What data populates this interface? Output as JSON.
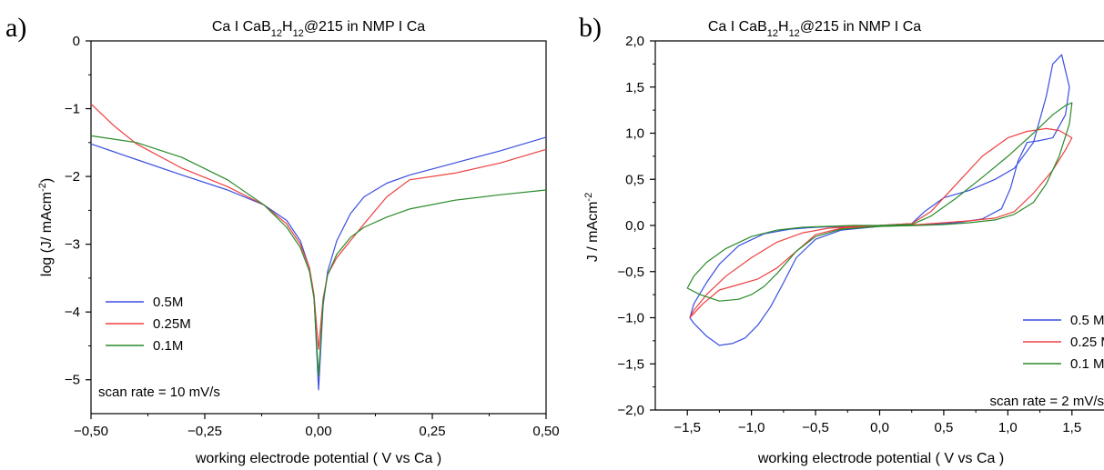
{
  "chart_data": [
    {
      "panel": "a)",
      "type": "line",
      "title_main": "Ca I CaB",
      "title_sub1": "12",
      "title_mid": "H",
      "title_sub2": "12",
      "title_end": "@215 in NMP I Ca",
      "xlabel": "working electrode potential  ( V vs Ca )",
      "ylabel_pre": "log (J/ mAcm",
      "ylabel_sup": "-2",
      "ylabel_post": ")",
      "xlim": [
        -0.5,
        0.5
      ],
      "ylim": [
        -5.5,
        0
      ],
      "xticks": [
        -0.5,
        -0.25,
        0,
        0.25,
        0.5
      ],
      "xtick_labels": [
        "−0,50",
        "−0,25",
        "0,00",
        "0,25",
        "0,50"
      ],
      "yticks": [
        0,
        -1,
        -2,
        -3,
        -4,
        -5
      ],
      "ytick_labels": [
        "0",
        "−1",
        "−2",
        "−3",
        "−4",
        "−5"
      ],
      "annotation": "scan rate = 10 mV/s",
      "legend_position": "bottom-left",
      "series": [
        {
          "name": "0.5M",
          "color": "#3a4fe0",
          "x": [
            -0.5,
            -0.4,
            -0.3,
            -0.2,
            -0.12,
            -0.07,
            -0.04,
            -0.02,
            -0.01,
            0.0,
            0.01,
            0.02,
            0.04,
            0.07,
            0.1,
            0.15,
            0.2,
            0.3,
            0.4,
            0.5
          ],
          "y": [
            -1.52,
            -1.75,
            -1.98,
            -2.2,
            -2.42,
            -2.65,
            -2.95,
            -3.35,
            -3.75,
            -5.15,
            -3.9,
            -3.4,
            -2.95,
            -2.55,
            -2.3,
            -2.1,
            -1.98,
            -1.8,
            -1.62,
            -1.42
          ]
        },
        {
          "name": "0.25M",
          "color": "#ee4040",
          "x": [
            -0.5,
            -0.45,
            -0.4,
            -0.3,
            -0.2,
            -0.12,
            -0.07,
            -0.04,
            -0.02,
            -0.01,
            0.0,
            0.01,
            0.02,
            0.04,
            0.07,
            0.1,
            0.15,
            0.2,
            0.3,
            0.4,
            0.5
          ],
          "y": [
            -0.93,
            -1.25,
            -1.52,
            -1.88,
            -2.15,
            -2.42,
            -2.7,
            -3.0,
            -3.35,
            -3.75,
            -4.55,
            -3.8,
            -3.45,
            -3.2,
            -2.95,
            -2.7,
            -2.3,
            -2.05,
            -1.95,
            -1.8,
            -1.6
          ]
        },
        {
          "name": "0.1M",
          "color": "#2a8a2a",
          "x": [
            -0.5,
            -0.4,
            -0.3,
            -0.2,
            -0.12,
            -0.07,
            -0.04,
            -0.02,
            -0.01,
            0.0,
            0.01,
            0.02,
            0.04,
            0.07,
            0.1,
            0.15,
            0.2,
            0.3,
            0.4,
            0.5
          ],
          "y": [
            -1.4,
            -1.5,
            -1.72,
            -2.05,
            -2.42,
            -2.75,
            -3.05,
            -3.4,
            -3.8,
            -4.95,
            -3.85,
            -3.45,
            -3.15,
            -2.9,
            -2.75,
            -2.6,
            -2.48,
            -2.35,
            -2.27,
            -2.2
          ]
        }
      ]
    },
    {
      "panel": "b)",
      "type": "line",
      "title_main": "Ca I CaB",
      "title_sub1": "12",
      "title_mid": "H",
      "title_sub2": "12",
      "title_end": "@215 in NMP I Ca",
      "xlabel": "working electrode potential ( V vs Ca )",
      "ylabel_pre": "J / mAcm",
      "ylabel_sup": "-2",
      "ylabel_post": "",
      "xlim": [
        -1.75,
        1.75
      ],
      "ylim": [
        -2.0,
        2.0
      ],
      "xticks": [
        -1.5,
        -1.0,
        -0.5,
        0,
        0.5,
        1.0,
        1.5
      ],
      "xtick_labels": [
        "−1,5",
        "−1,0",
        "−0,5",
        "0,0",
        "0,5",
        "1,0",
        "1,5"
      ],
      "yticks": [
        2.0,
        1.5,
        1.0,
        0.5,
        0.0,
        -0.5,
        -1.0,
        -1.5,
        -2.0
      ],
      "ytick_labels": [
        "2,0",
        "1,5",
        "1,0",
        "0,5",
        "0,0",
        "−0,5",
        "−1,0",
        "−1,5",
        "−2,0"
      ],
      "annotation": "scan rate = 2 mV/s",
      "legend_position": "bottom-right",
      "series": [
        {
          "name": "0.5 M",
          "color": "#3a4fe0",
          "x": [
            0.0,
            0.25,
            0.35,
            0.5,
            0.7,
            0.9,
            1.05,
            1.2,
            1.3,
            1.35,
            1.42,
            1.48,
            1.45,
            1.35,
            1.25,
            1.15,
            1.08,
            1.02,
            0.95,
            0.8,
            0.6,
            0.4,
            0.2,
            0.0,
            -0.3,
            -0.5,
            -0.65,
            -0.75,
            -0.85,
            -0.95,
            -1.05,
            -1.15,
            -1.25,
            -1.35,
            -1.45,
            -1.48,
            -1.45,
            -1.35,
            -1.25,
            -1.1,
            -0.9,
            -0.7,
            -0.5,
            -0.3,
            0.0
          ],
          "y": [
            0.0,
            0.02,
            0.15,
            0.3,
            0.38,
            0.5,
            0.62,
            0.9,
            1.4,
            1.75,
            1.85,
            1.5,
            1.2,
            0.95,
            0.92,
            0.9,
            0.7,
            0.4,
            0.18,
            0.07,
            0.03,
            0.01,
            0.0,
            -0.01,
            -0.05,
            -0.15,
            -0.35,
            -0.62,
            -0.88,
            -1.08,
            -1.22,
            -1.28,
            -1.3,
            -1.2,
            -1.06,
            -1.0,
            -0.85,
            -0.62,
            -0.42,
            -0.22,
            -0.09,
            -0.04,
            -0.02,
            -0.01,
            0.0
          ]
        },
        {
          "name": "0.25 M",
          "color": "#ee4040",
          "x": [
            0.0,
            0.25,
            0.4,
            0.6,
            0.8,
            1.0,
            1.15,
            1.3,
            1.4,
            1.5,
            1.45,
            1.35,
            1.2,
            1.05,
            0.9,
            0.7,
            0.5,
            0.3,
            0.0,
            -0.3,
            -0.5,
            -0.65,
            -0.8,
            -0.95,
            -1.1,
            -1.25,
            -1.38,
            -1.48,
            -1.45,
            -1.35,
            -1.2,
            -1.0,
            -0.8,
            -0.6,
            -0.4,
            -0.2,
            0.0
          ],
          "y": [
            0.0,
            0.02,
            0.15,
            0.45,
            0.75,
            0.95,
            1.02,
            1.05,
            1.03,
            0.95,
            0.82,
            0.6,
            0.35,
            0.15,
            0.08,
            0.05,
            0.03,
            0.01,
            0.0,
            -0.03,
            -0.1,
            -0.28,
            -0.46,
            -0.58,
            -0.64,
            -0.7,
            -0.85,
            -1.0,
            -0.92,
            -0.75,
            -0.55,
            -0.35,
            -0.18,
            -0.08,
            -0.03,
            -0.01,
            0.0
          ]
        },
        {
          "name": "0.1 M",
          "color": "#2a8a2a",
          "x": [
            0.0,
            0.25,
            0.4,
            0.6,
            0.8,
            1.0,
            1.2,
            1.35,
            1.45,
            1.5,
            1.48,
            1.4,
            1.3,
            1.2,
            1.05,
            0.9,
            0.7,
            0.5,
            0.3,
            0.0,
            -0.3,
            -0.5,
            -0.65,
            -0.8,
            -0.9,
            -1.0,
            -1.1,
            -1.25,
            -1.4,
            -1.5,
            -1.45,
            -1.35,
            -1.2,
            -1.0,
            -0.8,
            -0.6,
            -0.4,
            -0.2,
            0.0
          ],
          "y": [
            0.0,
            0.01,
            0.1,
            0.3,
            0.52,
            0.75,
            1.0,
            1.2,
            1.3,
            1.33,
            1.1,
            0.75,
            0.45,
            0.25,
            0.12,
            0.06,
            0.03,
            0.01,
            0.0,
            -0.01,
            -0.04,
            -0.12,
            -0.28,
            -0.52,
            -0.66,
            -0.75,
            -0.8,
            -0.82,
            -0.75,
            -0.68,
            -0.55,
            -0.4,
            -0.25,
            -0.12,
            -0.05,
            -0.02,
            -0.01,
            0.0,
            0.0
          ]
        }
      ]
    }
  ]
}
